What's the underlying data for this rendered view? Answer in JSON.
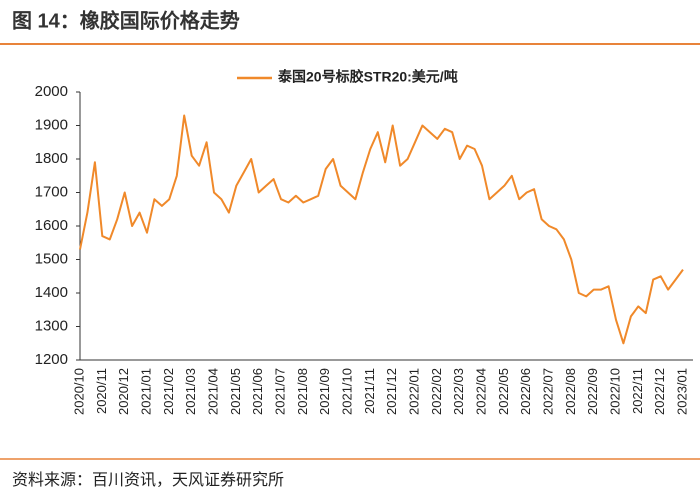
{
  "chart_data": {
    "type": "line",
    "title": "图 14：橡胶国际价格走势",
    "source": "资料来源：百川资讯，天风证券研究所",
    "categories": [
      "2020/10",
      null,
      null,
      "2020/11",
      null,
      null,
      "2020/12",
      null,
      null,
      "2021/01",
      null,
      null,
      "2021/02",
      null,
      null,
      "2021/03",
      null,
      null,
      "2021/04",
      null,
      null,
      "2021/05",
      null,
      null,
      "2021/06",
      null,
      null,
      "2021/07",
      null,
      null,
      "2021/08",
      null,
      null,
      "2021/09",
      null,
      null,
      "2021/10",
      null,
      null,
      "2021/11",
      null,
      null,
      "2021/12",
      null,
      null,
      "2022/01",
      null,
      null,
      "2022/02",
      null,
      null,
      "2022/03",
      null,
      null,
      "2022/04",
      null,
      null,
      "2022/05",
      null,
      null,
      "2022/06",
      null,
      null,
      "2022/07",
      null,
      null,
      "2022/08",
      null,
      null,
      "2022/09",
      null,
      null,
      "2022/10",
      null,
      null,
      "2022/11",
      null,
      null,
      "2022/12",
      null,
      null,
      "2023/01"
    ],
    "series": [
      {
        "name": "泰国20号标胶STR20:美元/吨",
        "color": "#f0892a",
        "values": [
          1530,
          1640,
          1790,
          1570,
          1560,
          1620,
          1700,
          1600,
          1640,
          1580,
          1680,
          1660,
          1680,
          1750,
          1930,
          1810,
          1780,
          1850,
          1700,
          1680,
          1640,
          1720,
          1760,
          1800,
          1700,
          1720,
          1740,
          1680,
          1670,
          1690,
          1670,
          1680,
          1690,
          1770,
          1800,
          1720,
          1700,
          1680,
          1760,
          1830,
          1880,
          1790,
          1900,
          1780,
          1800,
          1850,
          1900,
          1880,
          1860,
          1890,
          1880,
          1800,
          1840,
          1830,
          1780,
          1680,
          1700,
          1720,
          1750,
          1680,
          1700,
          1710,
          1620,
          1600,
          1590,
          1560,
          1500,
          1400,
          1390,
          1410,
          1410,
          1420,
          1320,
          1250,
          1330,
          1360,
          1340,
          1440,
          1450,
          1410,
          1440,
          1470
        ]
      }
    ],
    "ylim": [
      1200,
      2000
    ],
    "yticks": [
      1200,
      1300,
      1400,
      1500,
      1600,
      1700,
      1800,
      1900,
      2000
    ]
  }
}
